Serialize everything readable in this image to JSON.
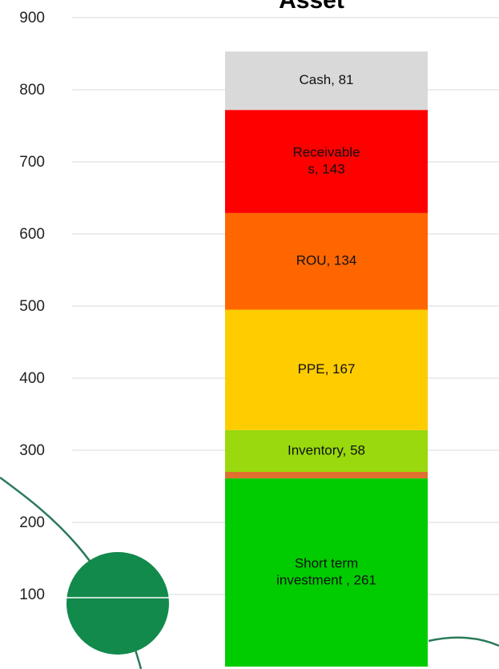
{
  "chart_data": {
    "type": "stacked-bar",
    "title": "Asset",
    "ylim": [
      0,
      900
    ],
    "yticks": [
      100,
      200,
      300,
      400,
      500,
      600,
      700,
      800,
      900
    ],
    "grid": true,
    "series": [
      {
        "values": [
          261
        ],
        "color": "#00cc00",
        "label_lines": [
          "Short term",
          "investment ,  261"
        ]
      },
      {
        "values": [
          9
        ],
        "color": "#e07030"
      },
      {
        "values": [
          58
        ],
        "color": "#99d90d",
        "label_lines": [
          "Inventory,  58"
        ]
      },
      {
        "values": [
          167
        ],
        "color": "#ffcc00",
        "label_lines": [
          "PPE,  167"
        ]
      },
      {
        "values": [
          134
        ],
        "color": "#ff6600",
        "label_lines": [
          "ROU,  134"
        ]
      },
      {
        "values": [
          143
        ],
        "color": "#ff0000",
        "label_lines": [
          "Receivable",
          "s,  143"
        ]
      },
      {
        "values": [
          81
        ],
        "color": "#d9d9d9",
        "label_lines": [
          "Cash,  81"
        ]
      }
    ]
  }
}
